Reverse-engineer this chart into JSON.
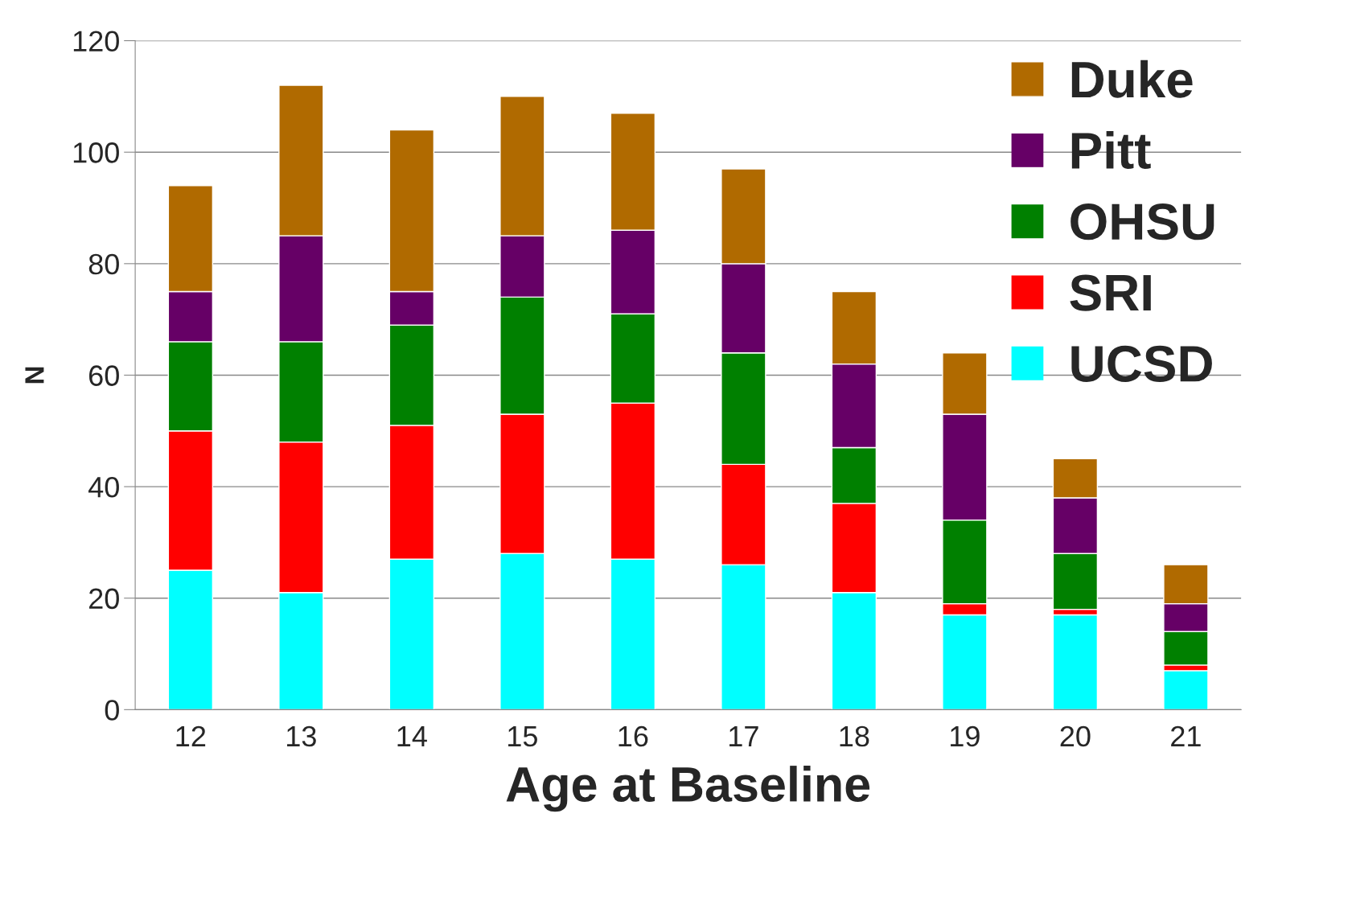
{
  "chart_data": {
    "type": "bar",
    "stacked": true,
    "xlabel": "Age at Baseline",
    "ylabel": "N",
    "categories": [
      "12",
      "13",
      "14",
      "15",
      "16",
      "17",
      "18",
      "19",
      "20",
      "21"
    ],
    "series": [
      {
        "name": "UCSD",
        "color": "#00ffff",
        "values": [
          25,
          21,
          27,
          28,
          27,
          26,
          21,
          17,
          17,
          7
        ]
      },
      {
        "name": "SRI",
        "color": "#ff0000",
        "values": [
          25,
          27,
          24,
          25,
          28,
          18,
          16,
          2,
          1,
          1
        ]
      },
      {
        "name": "OHSU",
        "color": "#008000",
        "values": [
          16,
          18,
          18,
          21,
          16,
          20,
          10,
          15,
          10,
          6
        ]
      },
      {
        "name": "Pitt",
        "color": "#660066",
        "values": [
          9,
          19,
          6,
          11,
          15,
          16,
          15,
          19,
          10,
          5
        ]
      },
      {
        "name": "Duke",
        "color": "#b06a00",
        "values": [
          19,
          27,
          29,
          25,
          21,
          17,
          13,
          11,
          7,
          7
        ]
      }
    ],
    "ylim": [
      0,
      120
    ],
    "yticks": [
      0,
      20,
      40,
      60,
      80,
      100,
      120
    ],
    "grid": "y",
    "legend": "top right"
  }
}
